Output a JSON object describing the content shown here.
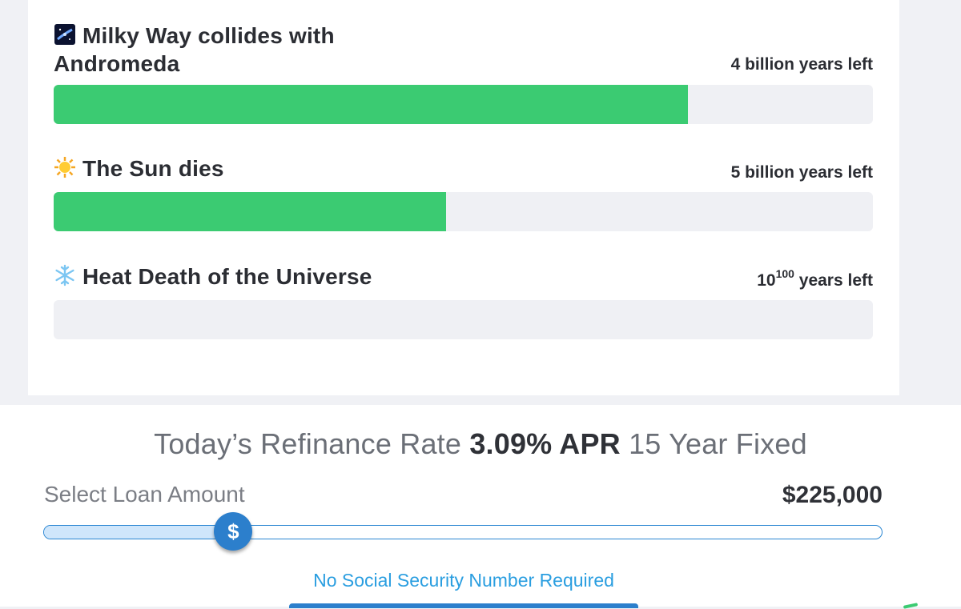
{
  "countdowns": [
    {
      "title_line1": "Milky Way collides with",
      "title_line2": "Andromeda",
      "icon": "galaxy-icon",
      "left": "4 billion years left",
      "progress_percent": 77.4
    },
    {
      "title": "The Sun dies",
      "icon": "sun-icon",
      "left": "5 billion years left",
      "progress_percent": 47.9
    },
    {
      "title": "Heat Death of the Universe",
      "icon": "snowflake-icon",
      "left_base": "10",
      "left_exp": "100",
      "left_suffix": " years left",
      "progress_percent": 0
    }
  ],
  "refinance": {
    "prefix": "Today’s Refinance Rate ",
    "rate": "3.09% APR",
    "suffix": " 15 Year Fixed",
    "loan_label": "Select Loan Amount",
    "loan_amount": "$225,000",
    "slider_percent": 22.6,
    "thumb_symbol": "$",
    "note": "No Social Security Number Required"
  },
  "colors": {
    "progress": "#3bcb72",
    "track": "#eff0f4",
    "accent": "#2c7fcc",
    "link": "#2a9ee0"
  }
}
